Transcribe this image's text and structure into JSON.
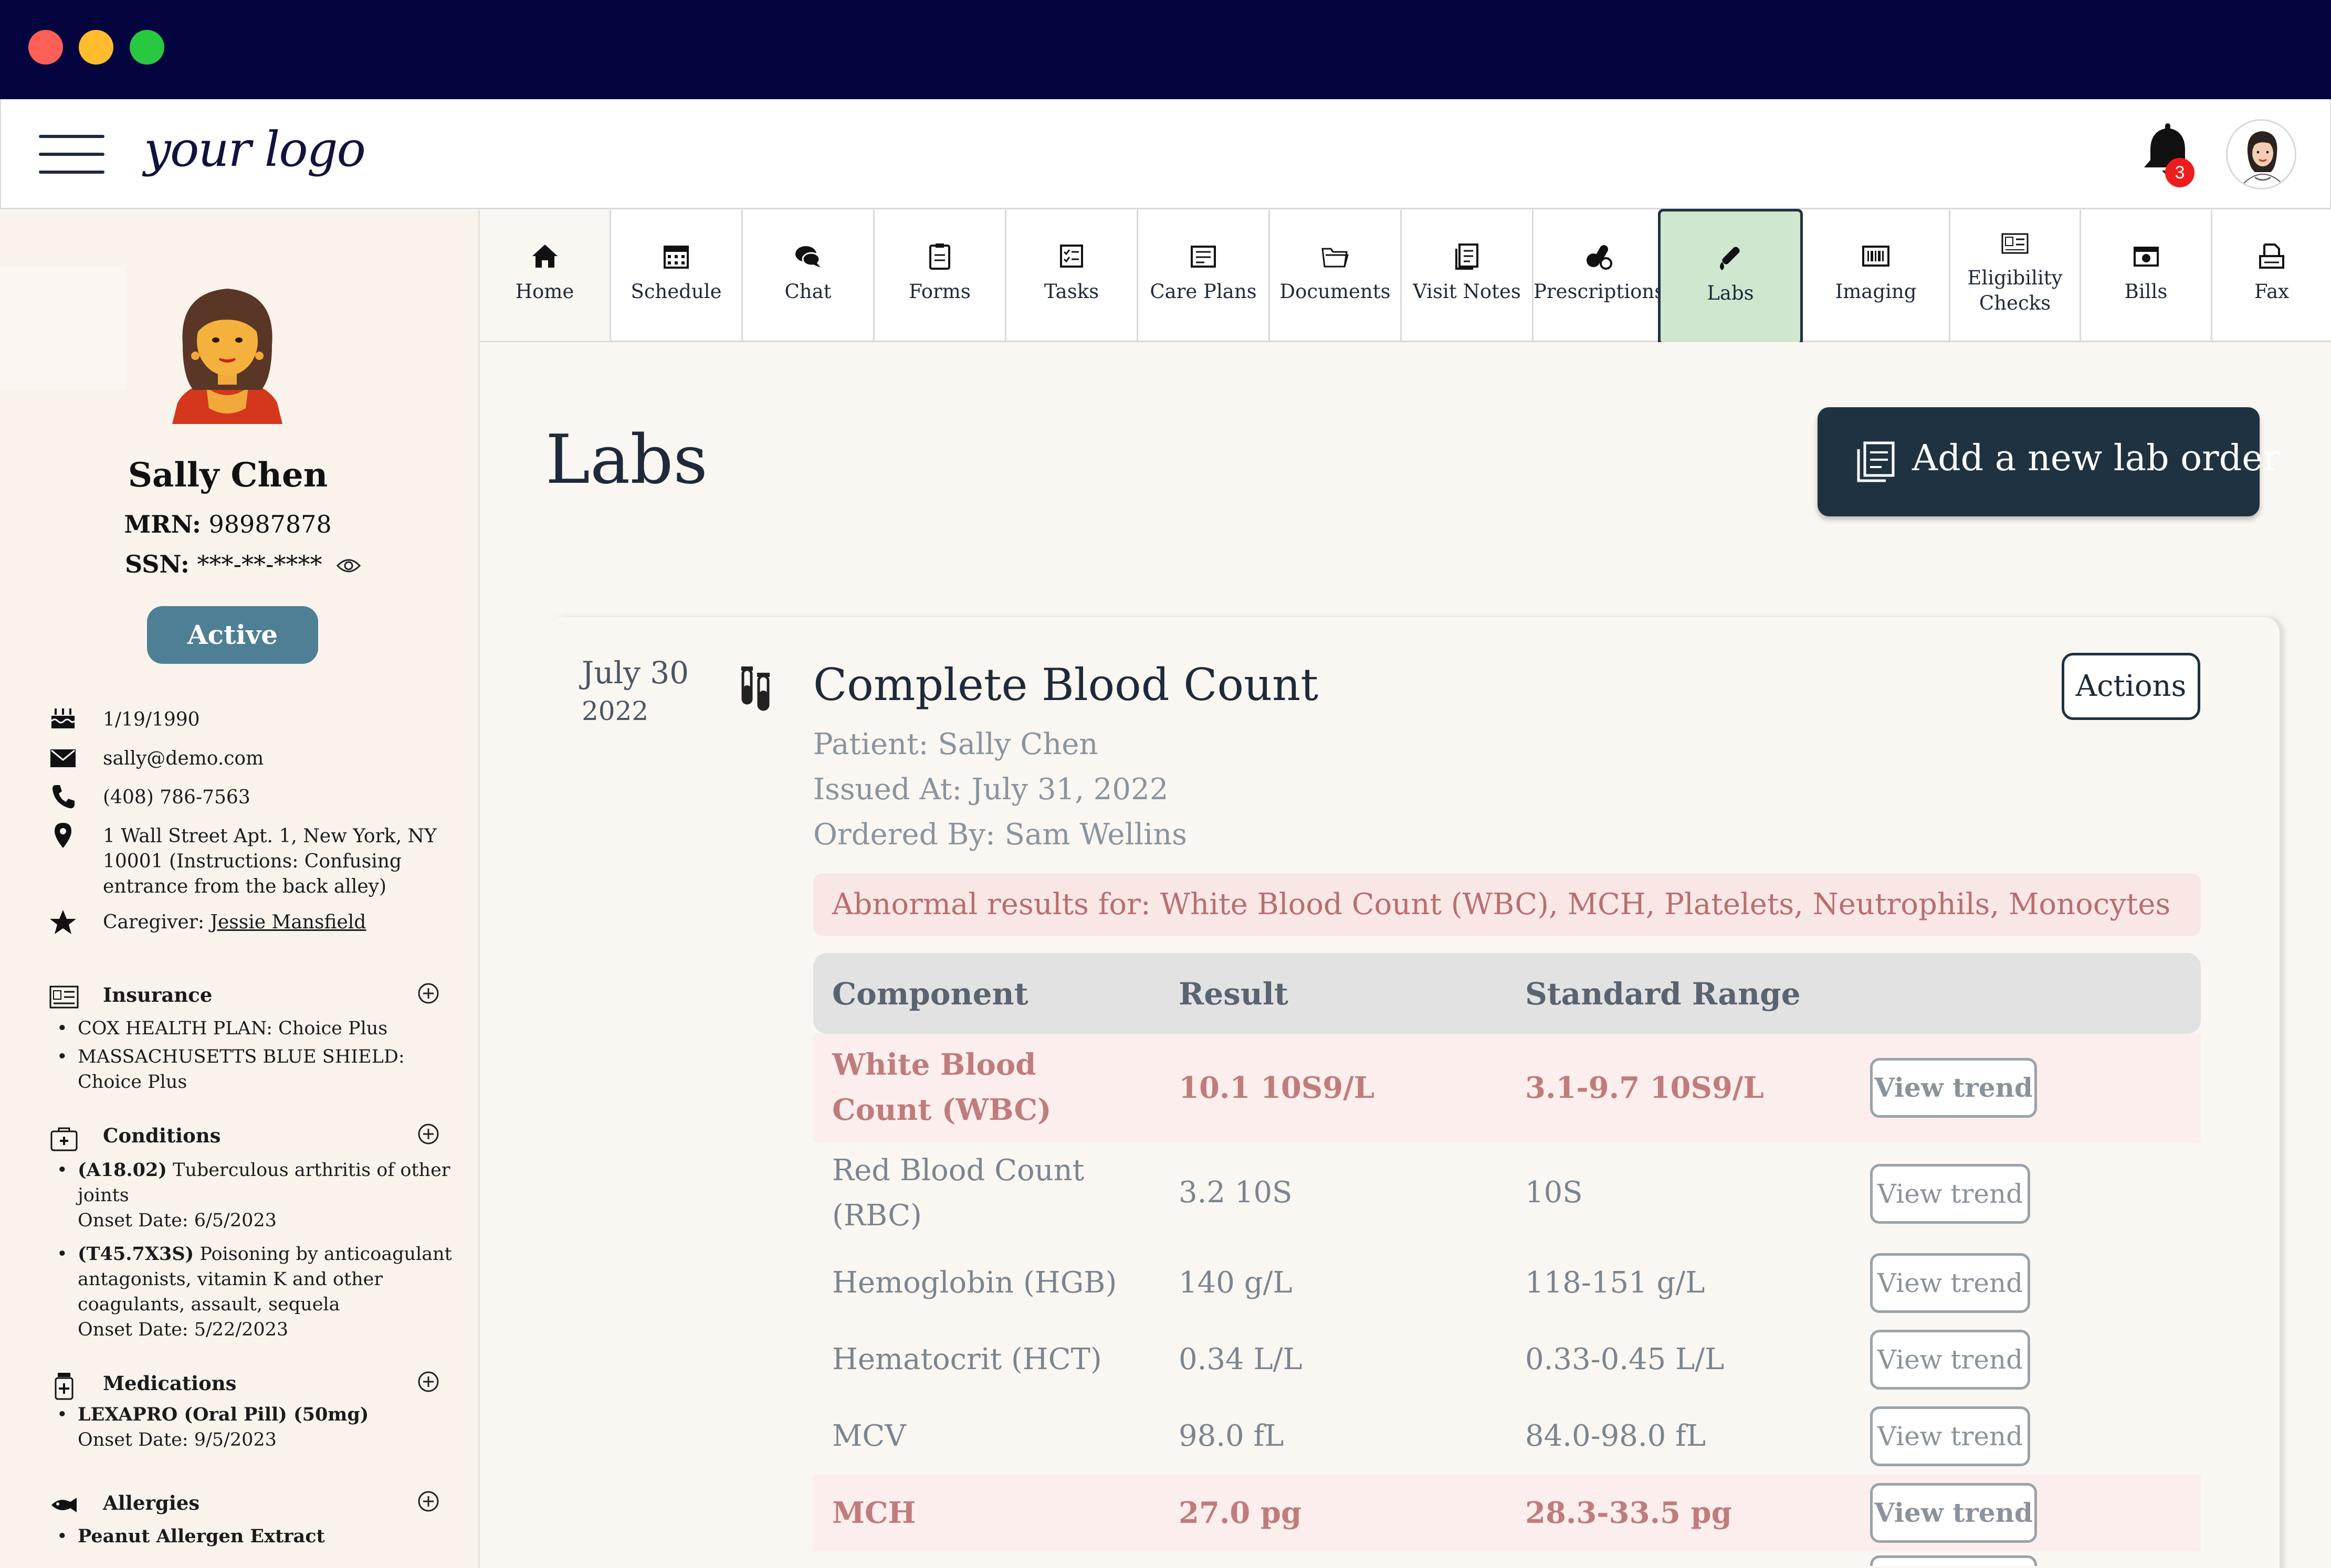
{
  "app": {
    "logo": "your logo",
    "notifications_count": "3"
  },
  "patient": {
    "name": "Sally Chen",
    "mrn_label": "MRN:",
    "mrn": "98987878",
    "ssn_label": "SSN:",
    "ssn": "***-**-****",
    "status": "Active",
    "dob": "1/19/1990",
    "email": "sally@demo.com",
    "phone": "(408) 786-7563",
    "address": "1 Wall Street Apt. 1, New York, NY 10001 (Instructions: Confusing entrance from the back alley)",
    "caregiver_label": "Caregiver:",
    "caregiver": "Jessie Mansfield"
  },
  "insurance": {
    "title": "Insurance",
    "items": [
      "COX HEALTH PLAN: Choice Plus",
      "MASSACHUSETTS BLUE SHIELD: Choice Plus"
    ]
  },
  "conditions": {
    "title": "Conditions",
    "items": [
      {
        "code": "(A18.02)",
        "desc": "Tuberculous arthritis of other joints",
        "onset": "Onset Date: 6/5/2023"
      },
      {
        "code": "(T45.7X3S)",
        "desc": "Poisoning by anticoagulant antagonists, vitamin K and other coagulants, assault, sequela",
        "onset": "Onset Date: 5/22/2023"
      }
    ]
  },
  "medications": {
    "title": "Medications",
    "items": [
      {
        "name": "LEXAPRO (Oral Pill) (50mg)",
        "onset": "Onset Date: 9/5/2023"
      }
    ]
  },
  "allergies": {
    "title": "Allergies",
    "items": [
      {
        "name": "Peanut Allergen Extract"
      }
    ]
  },
  "tabs": [
    {
      "label": "Home",
      "icon": "home-icon"
    },
    {
      "label": "Schedule",
      "icon": "calendar-icon"
    },
    {
      "label": "Chat",
      "icon": "chat-icon"
    },
    {
      "label": "Forms",
      "icon": "clipboard-icon"
    },
    {
      "label": "Tasks",
      "icon": "tasks-icon"
    },
    {
      "label": "Care Plans",
      "icon": "care-plans-icon"
    },
    {
      "label": "Documents",
      "icon": "folder-icon"
    },
    {
      "label": "Visit Notes",
      "icon": "notes-icon"
    },
    {
      "label": "Prescriptions",
      "icon": "pills-icon"
    },
    {
      "label": "Labs",
      "icon": "test-tube-icon"
    },
    {
      "label": "Imaging",
      "icon": "barcode-icon"
    },
    {
      "label": "Eligibility Checks",
      "icon": "id-card-icon"
    },
    {
      "label": "Bills",
      "icon": "bill-icon"
    },
    {
      "label": "Fax",
      "icon": "fax-icon"
    }
  ],
  "page": {
    "title": "Labs",
    "add_button": "Add a new lab order"
  },
  "lab": {
    "date_day": "July 30",
    "date_year": "2022",
    "title": "Complete Blood Count",
    "patient": "Patient: Sally Chen",
    "issued": "Issued At: July 31, 2022",
    "ordered_by": "Ordered By: Sam Wellins",
    "actions_label": "Actions",
    "abnormal": "Abnormal results for: White Blood Count (WBC), MCH, Platelets, Neutrophils, Monocytes",
    "columns": [
      "Component",
      "Result",
      "Standard Range"
    ],
    "rows": [
      {
        "component": "White Blood Count (WBC)",
        "result": "10.1 10S9/L",
        "range": "3.1-9.7 10S9/L",
        "abnormal": true,
        "trend": "View trend"
      },
      {
        "component": "Red Blood Count (RBC)",
        "result": "3.2 10S",
        "range": "10S",
        "abnormal": false,
        "trend": "View trend"
      },
      {
        "component": "Hemoglobin (HGB)",
        "result": "140 g/L",
        "range": "118-151 g/L",
        "abnormal": false,
        "trend": "View trend"
      },
      {
        "component": "Hematocrit (HCT)",
        "result": "0.34 L/L",
        "range": "0.33-0.45 L/L",
        "abnormal": false,
        "trend": "View trend"
      },
      {
        "component": "MCV",
        "result": "98.0 fL",
        "range": "84.0-98.0 fL",
        "abnormal": false,
        "trend": "View trend"
      },
      {
        "component": "MCH",
        "result": "27.0 pg",
        "range": "28.3-33.5 pg",
        "abnormal": true,
        "trend": "View trend"
      }
    ]
  },
  "colors": {
    "titlebar": "#04043f",
    "primary": "#1e3242",
    "active_tab": "#d0e7cf",
    "status_pill": "#4e7f95",
    "abnormal_text": "#b86f6f"
  }
}
